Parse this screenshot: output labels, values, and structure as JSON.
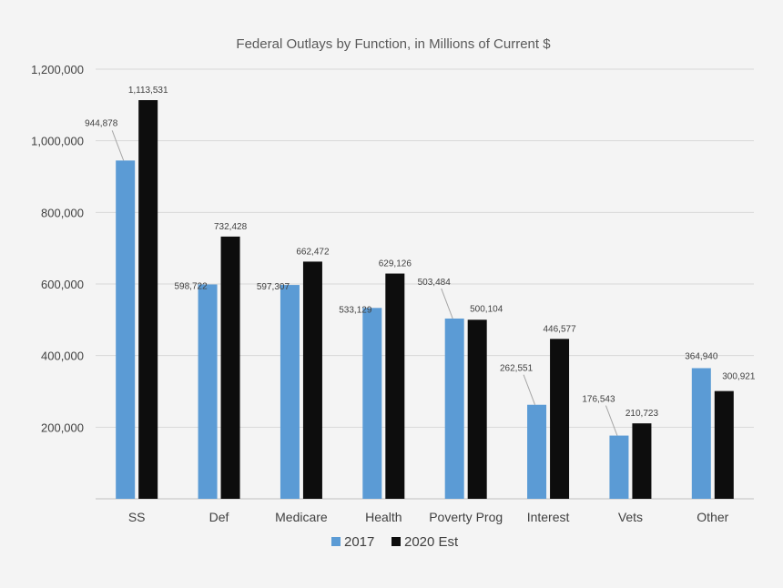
{
  "chart_data": {
    "type": "bar",
    "title": "Federal Outlays by Function, in Millions of Current $",
    "categories": [
      "SS",
      "Def",
      "Medicare",
      "Health",
      "Poverty Prog",
      "Interest",
      "Vets",
      "Other"
    ],
    "series": [
      {
        "name": "2017",
        "color": "#5b9bd5",
        "values": [
          944878,
          598722,
          597307,
          533129,
          503484,
          262551,
          176543,
          364940
        ],
        "labels": [
          "944,878",
          "598,722",
          "597,307",
          "533,129",
          "503,484",
          "262,551",
          "176,543",
          "364,940"
        ]
      },
      {
        "name": "2020 Est",
        "color": "#0d0d0d",
        "values": [
          1113531,
          732428,
          662472,
          629126,
          500104,
          446577,
          210723,
          300921
        ],
        "labels": [
          "1,113,531",
          "732,428",
          "662,472",
          "629,126",
          "500,104",
          "446,577",
          "210,723",
          "300,921"
        ]
      }
    ],
    "yticks": [
      200000,
      400000,
      600000,
      800000,
      1000000,
      1200000
    ],
    "ytick_labels": [
      "200,000",
      "400,000",
      "600,000",
      "800,000",
      "1,000,000",
      "1,200,000"
    ],
    "ylim": [
      0,
      1200000
    ],
    "xlabel": "",
    "ylabel": "",
    "grid": true,
    "legend_position": "bottom-center"
  }
}
